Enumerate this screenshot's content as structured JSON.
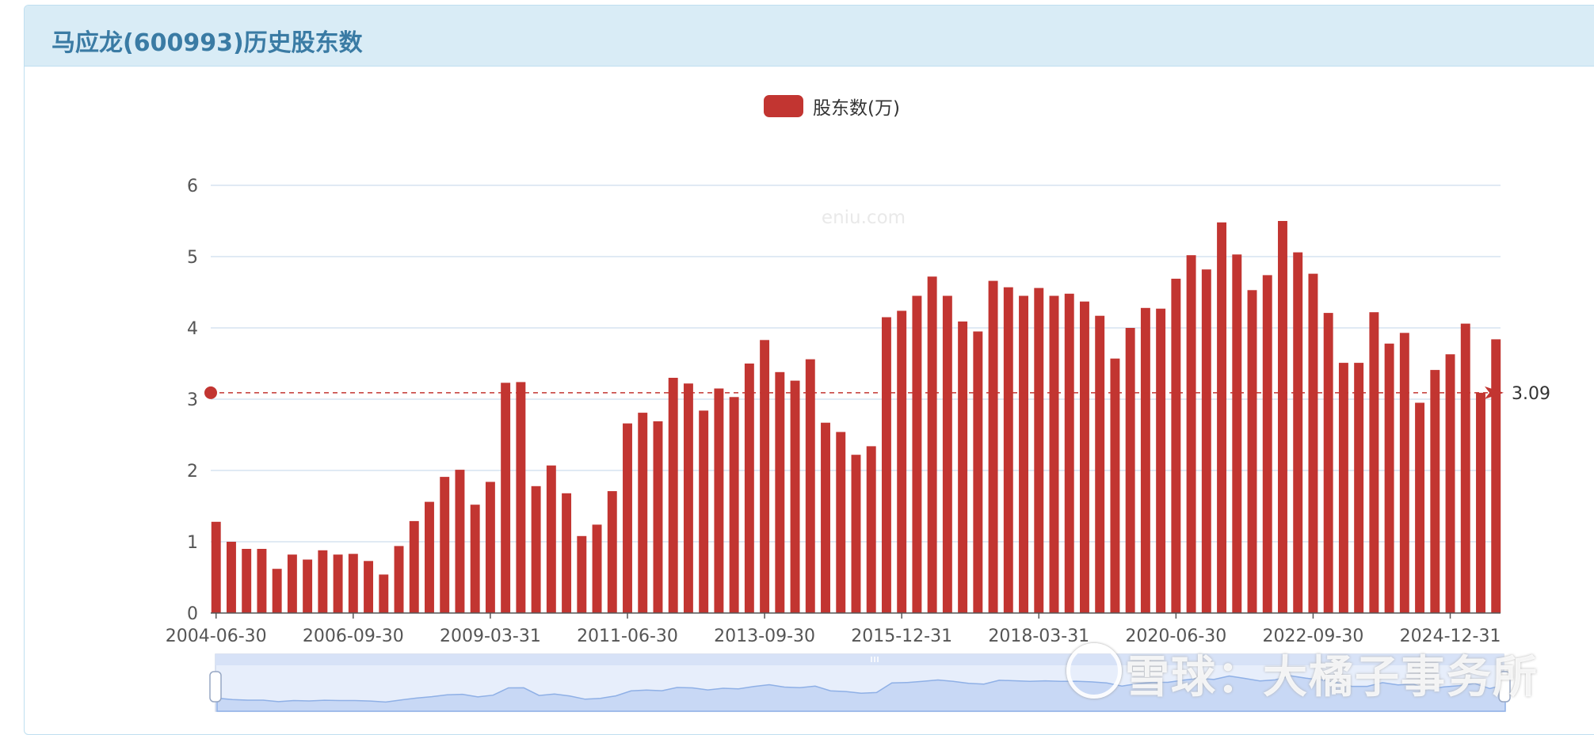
{
  "page": {
    "title": "马应龙(600993)历史股东数"
  },
  "legend": {
    "label": "股东数(万)",
    "color": "#c23531"
  },
  "watermark": {
    "inner": "eniu.com",
    "corner": "雪球：大橘子事务所"
  },
  "chart_data": {
    "type": "bar",
    "title": "马应龙(600993)历史股东数",
    "series": [
      {
        "name": "股东数(万)",
        "color": "#c23531",
        "values": [
          1.28,
          1.0,
          0.9,
          0.9,
          0.62,
          0.82,
          0.75,
          0.88,
          0.82,
          0.83,
          0.73,
          0.54,
          0.94,
          1.29,
          1.56,
          1.91,
          2.01,
          1.52,
          1.84,
          3.23,
          3.24,
          1.78,
          2.07,
          1.68,
          1.08,
          1.24,
          1.71,
          2.66,
          2.81,
          2.69,
          3.3,
          3.22,
          2.84,
          3.15,
          3.03,
          3.5,
          3.83,
          3.38,
          3.26,
          3.56,
          2.67,
          2.54,
          2.22,
          2.34,
          4.15,
          4.24,
          4.45,
          4.72,
          4.45,
          4.09,
          3.95,
          4.66,
          4.57,
          4.45,
          4.56,
          4.45,
          4.48,
          4.37,
          4.17,
          3.57,
          4.0,
          4.28,
          4.27,
          4.69,
          5.02,
          4.82,
          5.48,
          5.03,
          4.53,
          4.74,
          5.5,
          5.06,
          4.76,
          4.21,
          3.51,
          3.51,
          4.22,
          3.78,
          3.93,
          2.95,
          3.41,
          3.63,
          4.06,
          3.09,
          3.84
        ]
      }
    ],
    "x_tick_labels": [
      "2004-06-30",
      "2006-09-30",
      "2009-03-31",
      "2011-06-30",
      "2013-09-30",
      "2015-12-31",
      "2018-03-31",
      "2020-06-30",
      "2022-09-30",
      "2024-12-31"
    ],
    "x_tick_indices": [
      0,
      9,
      18,
      27,
      36,
      45,
      54,
      63,
      72,
      81
    ],
    "y_ticks": [
      0,
      1,
      2,
      3,
      4,
      5,
      6
    ],
    "ylim": [
      0,
      6
    ],
    "mark_line": {
      "value": 3.09,
      "label": "3.09"
    },
    "grid": true,
    "legend_position": "top-center",
    "has_datazoom": true
  }
}
